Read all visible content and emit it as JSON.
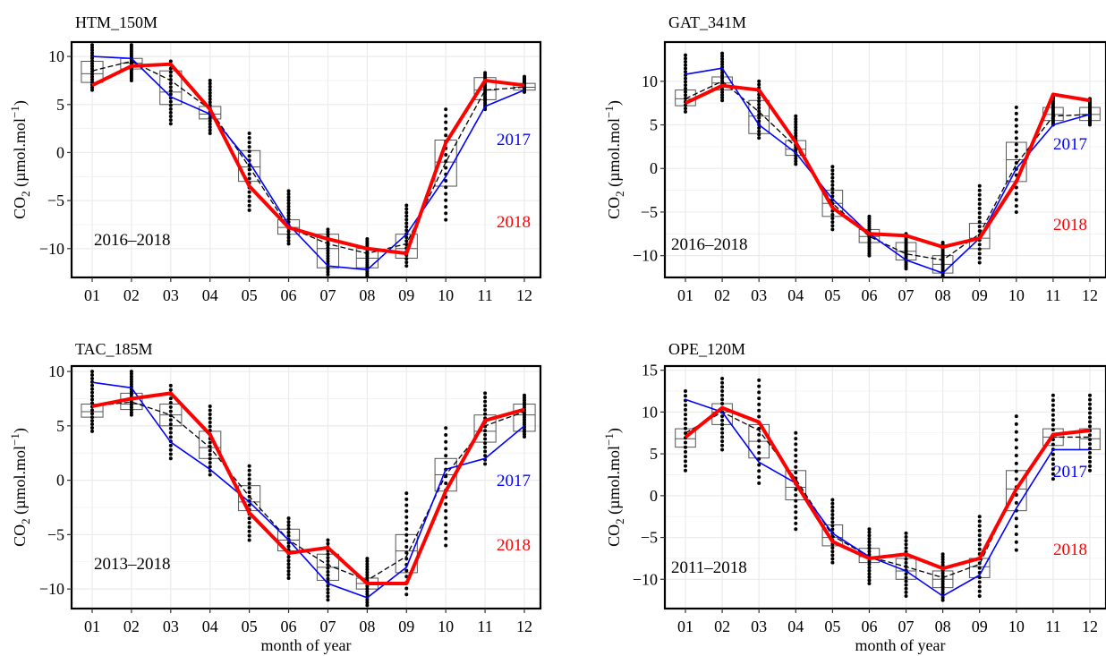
{
  "figure": {
    "xlabel_shared": "month of year",
    "x_categories": [
      "01",
      "02",
      "03",
      "04",
      "05",
      "06",
      "07",
      "08",
      "09",
      "10",
      "11",
      "12"
    ],
    "ylabel_prefix": "CO",
    "ylabel_sub": "2",
    "ylabel_unit": " (µmol.mol",
    "ylabel_sup": "−1",
    "ylabel_close": ")",
    "legend_2017": "2017",
    "legend_2018": "2018",
    "colors": {
      "line_2017": "#0000ff",
      "line_2018": "#ff0000",
      "box": "#555555",
      "points": "#000000",
      "mean": "#000000",
      "grid": "#ebebeb"
    }
  },
  "chart_data": [
    {
      "type": "box",
      "title": "HTM_150M",
      "period": "2016–2018",
      "ylim": [
        -13,
        11.5
      ],
      "yticks": [
        10,
        5,
        0,
        -5,
        -10
      ],
      "ytick_labels": [
        "10",
        "5",
        "0",
        "−5",
        "−10"
      ],
      "categories": [
        "01",
        "02",
        "03",
        "04",
        "05",
        "06",
        "07",
        "08",
        "09",
        "10",
        "11",
        "12"
      ],
      "boxes": [
        {
          "q1": 7.3,
          "med": 8.2,
          "q3": 9.5
        },
        {
          "q1": 8.7,
          "med": 9.3,
          "q3": 9.8
        },
        {
          "q1": 5.0,
          "med": 6.3,
          "q3": 8.5
        },
        {
          "q1": 3.5,
          "med": 4.0,
          "q3": 4.8
        },
        {
          "q1": -3.0,
          "med": -1.5,
          "q3": 0.2
        },
        {
          "q1": -8.5,
          "med": -7.8,
          "q3": -7.0
        },
        {
          "q1": -12.0,
          "med": -10.0,
          "q3": -8.5
        },
        {
          "q1": -12.0,
          "med": -11.0,
          "q3": -10.0
        },
        {
          "q1": -11.0,
          "med": -10.0,
          "q3": -8.5
        },
        {
          "q1": -3.5,
          "med": -1.0,
          "q3": 1.3
        },
        {
          "q1": 5.5,
          "med": 6.5,
          "q3": 7.8
        },
        {
          "q1": 6.5,
          "med": 6.8,
          "q3": 7.2
        }
      ],
      "points_range": [
        [
          6.5,
          11.2
        ],
        [
          7.5,
          11.2
        ],
        [
          3.0,
          9.5
        ],
        [
          2.0,
          7.5
        ],
        [
          -6.0,
          2.0
        ],
        [
          -9.5,
          -4.0
        ],
        [
          -12.7,
          -8.0
        ],
        [
          -12.8,
          -9.0
        ],
        [
          -11.8,
          -5.5
        ],
        [
          -7.0,
          4.5
        ],
        [
          4.5,
          8.3
        ],
        [
          6.3,
          7.9
        ]
      ],
      "mean_dashed": [
        8.5,
        9.5,
        7.5,
        4.5,
        -1.5,
        -7.8,
        -9.5,
        -10.5,
        -9.5,
        -1.0,
        6.5,
        6.8
      ],
      "series": [
        {
          "name": "2017",
          "values": [
            10.0,
            9.8,
            5.8,
            4.0,
            -1.0,
            -7.5,
            -11.8,
            -12.2,
            -8.5,
            -2.5,
            4.8,
            6.5
          ]
        },
        {
          "name": "2018",
          "values": [
            7.0,
            9.0,
            9.2,
            4.5,
            -3.5,
            -7.8,
            -9.0,
            -10.0,
            -10.5,
            1.0,
            7.5,
            7.0
          ]
        }
      ]
    },
    {
      "type": "box",
      "title": "GAT_341M",
      "period": "2016–2018",
      "ylim": [
        -12.5,
        14.5
      ],
      "yticks": [
        10,
        5,
        0,
        -5,
        -10
      ],
      "ytick_labels": [
        "10",
        "5",
        "0",
        "−5",
        "−10"
      ],
      "categories": [
        "01",
        "02",
        "03",
        "04",
        "05",
        "06",
        "07",
        "08",
        "09",
        "10",
        "11",
        "12"
      ],
      "boxes": [
        {
          "q1": 7.2,
          "med": 8.0,
          "q3": 9.0
        },
        {
          "q1": 9.0,
          "med": 9.8,
          "q3": 10.5
        },
        {
          "q1": 4.0,
          "med": 6.0,
          "q3": 7.8
        },
        {
          "q1": 1.5,
          "med": 2.2,
          "q3": 3.2
        },
        {
          "q1": -5.5,
          "med": -4.0,
          "q3": -2.5
        },
        {
          "q1": -8.5,
          "med": -7.8,
          "q3": -7.0
        },
        {
          "q1": -10.5,
          "med": -9.5,
          "q3": -8.5
        },
        {
          "q1": -12.0,
          "med": -11.0,
          "q3": -10.0
        },
        {
          "q1": -9.2,
          "med": -8.0,
          "q3": -6.3
        },
        {
          "q1": -1.5,
          "med": 1.0,
          "q3": 3.0
        },
        {
          "q1": 5.5,
          "med": 6.2,
          "q3": 7.0
        },
        {
          "q1": 5.5,
          "med": 6.2,
          "q3": 7.0
        }
      ],
      "points_range": [
        [
          6.5,
          13.0
        ],
        [
          7.8,
          13.2
        ],
        [
          3.5,
          10.0
        ],
        [
          0.5,
          6.0
        ],
        [
          -7.0,
          0.2
        ],
        [
          -10.0,
          -5.5
        ],
        [
          -11.5,
          -7.5
        ],
        [
          -12.5,
          -8.5
        ],
        [
          -10.8,
          -2.0
        ],
        [
          -5.0,
          7.0
        ],
        [
          5.0,
          8.3
        ],
        [
          5.0,
          8.0
        ]
      ],
      "mean_dashed": [
        8.0,
        10.0,
        6.5,
        2.5,
        -4.0,
        -7.8,
        -9.8,
        -10.5,
        -7.5,
        0.5,
        6.0,
        6.2
      ],
      "series": [
        {
          "name": "2017",
          "values": [
            10.8,
            11.5,
            5.0,
            1.8,
            -3.5,
            -7.5,
            -10.5,
            -12.0,
            -8.0,
            0.0,
            5.0,
            6.2
          ]
        },
        {
          "name": "2018",
          "values": [
            7.5,
            9.5,
            9.0,
            3.0,
            -4.5,
            -7.5,
            -7.7,
            -9.0,
            -8.0,
            -1.5,
            8.5,
            7.8
          ]
        }
      ]
    },
    {
      "type": "box",
      "title": "TAC_185M",
      "period": "2013–2018",
      "ylim": [
        -11.8,
        10.5
      ],
      "yticks": [
        10,
        5,
        0,
        -5,
        -10
      ],
      "ytick_labels": [
        "10",
        "5",
        "0",
        "−5",
        "−10"
      ],
      "categories": [
        "01",
        "02",
        "03",
        "04",
        "05",
        "06",
        "07",
        "08",
        "09",
        "10",
        "11",
        "12"
      ],
      "boxes": [
        {
          "q1": 5.8,
          "med": 6.3,
          "q3": 7.0
        },
        {
          "q1": 6.5,
          "med": 7.0,
          "q3": 8.0
        },
        {
          "q1": 5.0,
          "med": 6.0,
          "q3": 7.0
        },
        {
          "q1": 2.0,
          "med": 3.0,
          "q3": 4.5
        },
        {
          "q1": -2.8,
          "med": -2.0,
          "q3": -0.5
        },
        {
          "q1": -6.5,
          "med": -5.5,
          "q3": -4.5
        },
        {
          "q1": -9.2,
          "med": -8.0,
          "q3": -6.8
        },
        {
          "q1": -10.0,
          "med": -9.5,
          "q3": -9.0
        },
        {
          "q1": -8.5,
          "med": -6.5,
          "q3": -5.0
        },
        {
          "q1": -1.0,
          "med": 0.5,
          "q3": 2.0
        },
        {
          "q1": 3.5,
          "med": 4.5,
          "q3": 6.0
        },
        {
          "q1": 4.5,
          "med": 6.0,
          "q3": 7.0
        }
      ],
      "points_range": [
        [
          4.5,
          10.0
        ],
        [
          6.0,
          10.0
        ],
        [
          2.0,
          8.7
        ],
        [
          0.5,
          6.8
        ],
        [
          -5.5,
          1.3
        ],
        [
          -9.0,
          -3.5
        ],
        [
          -11.0,
          -5.5
        ],
        [
          -11.5,
          -7.2
        ],
        [
          -10.5,
          -1.2
        ],
        [
          -6.0,
          4.8
        ],
        [
          1.5,
          8.0
        ],
        [
          4.0,
          7.8
        ]
      ],
      "mean_dashed": [
        6.8,
        7.2,
        6.0,
        3.0,
        -1.5,
        -5.5,
        -7.8,
        -9.2,
        -7.0,
        0.5,
        5.0,
        6.3
      ],
      "series": [
        {
          "name": "2017",
          "values": [
            9.0,
            8.5,
            3.5,
            1.0,
            -2.0,
            -5.5,
            -9.5,
            -10.8,
            -8.0,
            1.0,
            2.0,
            5.0
          ]
        },
        {
          "name": "2018",
          "values": [
            6.8,
            7.5,
            8.0,
            4.2,
            -3.0,
            -6.7,
            -6.2,
            -9.5,
            -9.5,
            -1.0,
            5.5,
            6.5
          ]
        }
      ]
    },
    {
      "type": "box",
      "title": "OPE_120M",
      "period": "2011–2018",
      "ylim": [
        -13.5,
        15.5
      ],
      "yticks": [
        15,
        10,
        5,
        0,
        -5,
        -10
      ],
      "ytick_labels": [
        "15",
        "10",
        "5",
        "0",
        "−5",
        "−10"
      ],
      "categories": [
        "01",
        "02",
        "03",
        "04",
        "05",
        "06",
        "07",
        "08",
        "09",
        "10",
        "11",
        "12"
      ],
      "boxes": [
        {
          "q1": 5.8,
          "med": 6.8,
          "q3": 8.0
        },
        {
          "q1": 8.5,
          "med": 10.0,
          "q3": 11.0
        },
        {
          "q1": 4.5,
          "med": 6.5,
          "q3": 8.5
        },
        {
          "q1": -0.5,
          "med": 1.0,
          "q3": 3.0
        },
        {
          "q1": -6.0,
          "med": -5.0,
          "q3": -3.5
        },
        {
          "q1": -8.0,
          "med": -7.3,
          "q3": -6.3
        },
        {
          "q1": -10.0,
          "med": -9.0,
          "q3": -7.5
        },
        {
          "q1": -11.0,
          "med": -10.0,
          "q3": -9.0
        },
        {
          "q1": -9.8,
          "med": -8.5,
          "q3": -7.5
        },
        {
          "q1": -1.8,
          "med": 0.8,
          "q3": 3.0
        },
        {
          "q1": 6.0,
          "med": 7.0,
          "q3": 8.0
        },
        {
          "q1": 5.5,
          "med": 6.8,
          "q3": 8.0
        }
      ],
      "points_range": [
        [
          3.0,
          12.5
        ],
        [
          5.5,
          14.0
        ],
        [
          1.5,
          13.8
        ],
        [
          -4.0,
          7.5
        ],
        [
          -8.0,
          -0.5
        ],
        [
          -10.5,
          -4.0
        ],
        [
          -12.0,
          -4.5
        ],
        [
          -12.5,
          -7.0
        ],
        [
          -12.0,
          -2.5
        ],
        [
          -6.5,
          9.5
        ],
        [
          2.0,
          12.0
        ],
        [
          3.0,
          12.0
        ]
      ],
      "mean_dashed": [
        7.5,
        10.0,
        7.8,
        2.0,
        -4.8,
        -7.3,
        -8.5,
        -9.8,
        -8.2,
        1.0,
        7.0,
        7.0
      ],
      "series": [
        {
          "name": "2017",
          "values": [
            11.5,
            10.0,
            4.0,
            1.5,
            -4.5,
            -7.3,
            -9.0,
            -12.0,
            -9.5,
            -1.5,
            5.5,
            5.5
          ]
        },
        {
          "name": "2018",
          "values": [
            7.0,
            10.5,
            8.8,
            1.5,
            -5.5,
            -7.5,
            -7.0,
            -8.7,
            -7.5,
            0.8,
            7.3,
            7.8
          ]
        }
      ]
    }
  ]
}
